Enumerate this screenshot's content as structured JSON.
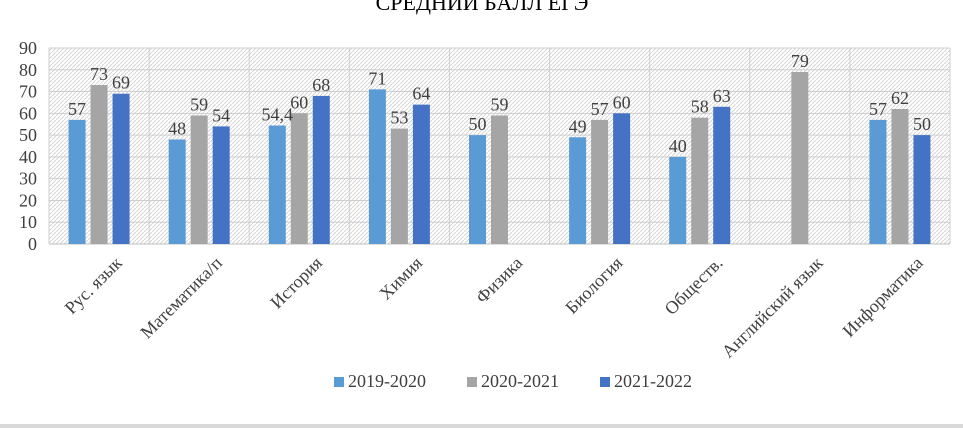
{
  "chart_data": {
    "type": "bar",
    "title": "СРЕДНИЙ БАЛЛ ЕГЭ",
    "xlabel": "",
    "ylabel": "",
    "ylim": [
      0,
      90
    ],
    "yticks": [
      0,
      10,
      20,
      30,
      40,
      50,
      60,
      70,
      80,
      90
    ],
    "grid": true,
    "legend_position": "bottom",
    "categories": [
      "Рус. язык",
      "Математика/п",
      "История",
      "Химия",
      "Физика",
      "Биология",
      "Обществ.",
      "Английский язык",
      "Информатика"
    ],
    "series": [
      {
        "name": "2019-2020",
        "color": "#5b9bd5",
        "values": [
          57,
          48,
          54.4,
          71,
          50,
          49,
          40,
          null,
          57
        ],
        "labels": [
          "57",
          "48",
          "54,4",
          "71",
          "50",
          "49",
          "40",
          null,
          "57"
        ]
      },
      {
        "name": "2020-2021",
        "color": "#a5a5a5",
        "values": [
          73,
          59,
          60,
          53,
          59,
          57,
          58,
          79,
          62
        ],
        "labels": [
          "73",
          "59",
          "60",
          "53",
          "59",
          "57",
          "58",
          "79",
          "62"
        ]
      },
      {
        "name": "2021-2022",
        "color": "#4472c4",
        "values": [
          69,
          54,
          68,
          64,
          null,
          60,
          63,
          null,
          50
        ],
        "labels": [
          "69",
          "54",
          "68",
          "64",
          null,
          "60",
          "63",
          null,
          "50"
        ]
      }
    ]
  }
}
